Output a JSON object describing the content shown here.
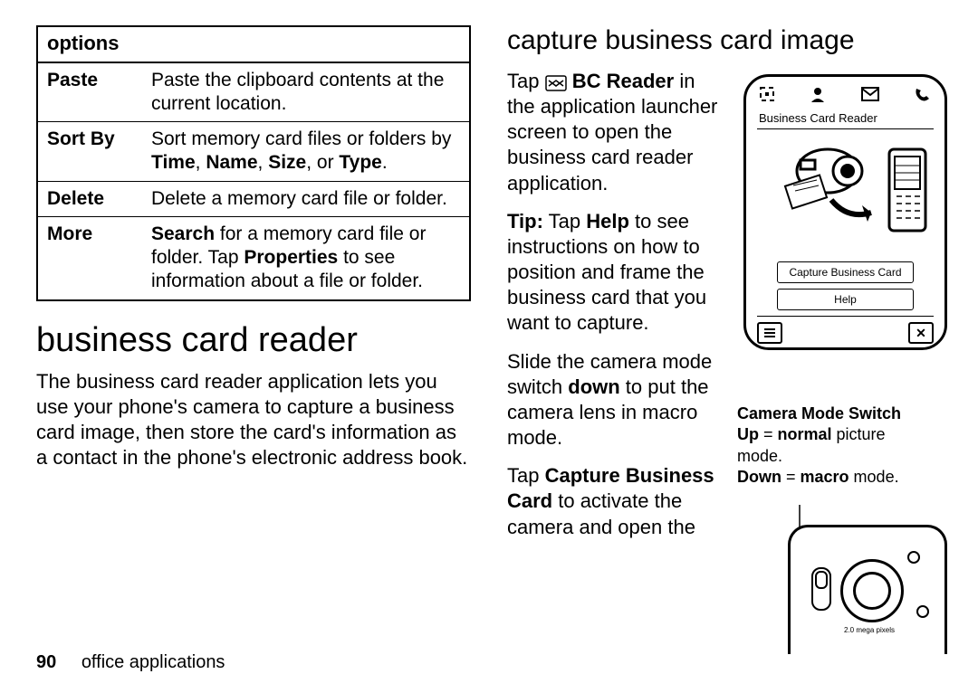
{
  "left": {
    "options_header": "options",
    "rows": [
      {
        "label": "Paste",
        "desc": "Paste the clipboard contents at the current location."
      },
      {
        "label": "Sort By",
        "desc": "Sort memory card files or folders by <b>Time</b>, <b>Name</b>, <b>Size</b>, or <b>Type</b>."
      },
      {
        "label": "Delete",
        "desc": "Delete a memory card file or folder."
      },
      {
        "label": "More",
        "desc": "<b>Search</b> for a memory card file or folder. Tap <b>Properties</b> to see information about a file or folder."
      }
    ],
    "heading": "business card reader",
    "body": "The business card reader application lets you use your phone's camera to capture a business card image, then store the card's information as a contact in the phone's electronic address book."
  },
  "right": {
    "heading": "capture business card image",
    "p1": "Tap <svg class='bcicon' width='24' height='18'><rect x='1' y='1' width='22' height='16' rx='2' fill='#fff' stroke='#000' stroke-width='1.5'/><path d='M4 6 L12 12 L20 6' fill='none' stroke='#000' stroke-width='1.5'/><path d='M4 12 L12 6 L20 12' fill='none' stroke='#000' stroke-width='1.5'/></svg> <b>BC Reader</b> in the application launcher screen to open the business card reader application.",
    "p2": "<b>Tip:</b> Tap <b>Help</b> to see instructions on how to position and frame the business card that you want to capture.",
    "p3": "Slide the camera mode switch <b>down</b> to put the camera lens in macro mode.",
    "p4": "Tap <b>Capture Business Card</b> to activate the camera and open the"
  },
  "device": {
    "title": "Business Card Reader",
    "btn1": "Capture Business Card",
    "btn2": "Help"
  },
  "mode": {
    "hd": "Camera Mode Switch",
    "l1a": "Up",
    "l1b": " = ",
    "l1c": "normal",
    "l1d": " picture mode.",
    "l2a": "Down",
    "l2b": " = ",
    "l2c": "macro",
    "l2d": " mode."
  },
  "camera_mp": "2.0 mega pixels",
  "footer": {
    "page": "90",
    "section": "office applications"
  }
}
